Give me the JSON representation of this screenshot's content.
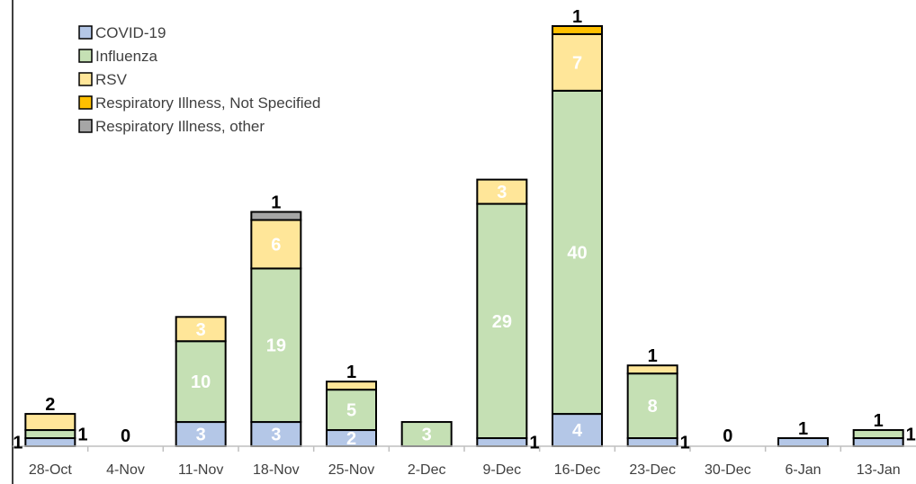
{
  "chart_data": {
    "type": "bar",
    "stacked": true,
    "title": "",
    "xlabel": "",
    "ylabel": "",
    "ylim": [
      0,
      53
    ],
    "grid": false,
    "legend_position": "top-left",
    "categories": [
      "28-Oct",
      "4-Nov",
      "11-Nov",
      "18-Nov",
      "25-Nov",
      "2-Dec",
      "9-Dec",
      "16-Dec",
      "23-Dec",
      "30-Dec",
      "6-Jan",
      "13-Jan"
    ],
    "series": [
      {
        "name": "COVID-19",
        "color": "#b4c7e7",
        "values": [
          1,
          0,
          3,
          3,
          2,
          0,
          1,
          4,
          1,
          0,
          1,
          1
        ]
      },
      {
        "name": "Influenza",
        "color": "#c5e0b4",
        "values": [
          1,
          0,
          10,
          19,
          5,
          3,
          29,
          40,
          8,
          0,
          0,
          1
        ]
      },
      {
        "name": "RSV",
        "color": "#ffe699",
        "values": [
          2,
          0,
          3,
          6,
          1,
          0,
          3,
          7,
          1,
          0,
          0,
          0
        ]
      },
      {
        "name": "Respiratory Illness, Not Specified",
        "color": "#ffc000",
        "values": [
          0,
          0,
          0,
          0,
          0,
          0,
          0,
          1,
          0,
          0,
          0,
          0
        ]
      },
      {
        "name": "Respiratory Illness, other",
        "color": "#a6a6a6",
        "values": [
          0,
          0,
          0,
          1,
          0,
          0,
          0,
          0,
          0,
          0,
          0,
          0
        ]
      }
    ],
    "data_labels": [
      [
        {
          "text": "1",
          "pos": "left",
          "series": 0
        },
        {
          "text": "1",
          "pos": "right",
          "series": 1
        },
        {
          "text": "2",
          "pos": "above",
          "series": 2
        }
      ],
      [
        {
          "text": "0",
          "pos": "zero",
          "series": 0
        }
      ],
      [
        {
          "text": "3",
          "pos": "inside",
          "series": 0
        },
        {
          "text": "10",
          "pos": "inside",
          "series": 1
        },
        {
          "text": "3",
          "pos": "inside",
          "series": 2
        }
      ],
      [
        {
          "text": "3",
          "pos": "inside",
          "series": 0
        },
        {
          "text": "19",
          "pos": "inside",
          "series": 1
        },
        {
          "text": "6",
          "pos": "inside",
          "series": 2
        },
        {
          "text": "1",
          "pos": "above",
          "series": 4
        }
      ],
      [
        {
          "text": "2",
          "pos": "inside",
          "series": 0
        },
        {
          "text": "5",
          "pos": "inside",
          "series": 1
        },
        {
          "text": "1",
          "pos": "above",
          "series": 2
        }
      ],
      [
        {
          "text": "3",
          "pos": "inside",
          "series": 1
        }
      ],
      [
        {
          "text": "1",
          "pos": "right",
          "series": 0
        },
        {
          "text": "29",
          "pos": "inside",
          "series": 1
        },
        {
          "text": "3",
          "pos": "inside",
          "series": 2
        }
      ],
      [
        {
          "text": "4",
          "pos": "inside",
          "series": 0
        },
        {
          "text": "40",
          "pos": "inside",
          "series": 1
        },
        {
          "text": "7",
          "pos": "inside",
          "series": 2
        },
        {
          "text": "1",
          "pos": "above",
          "series": 3
        }
      ],
      [
        {
          "text": "1",
          "pos": "right",
          "series": 0
        },
        {
          "text": "8",
          "pos": "inside",
          "series": 1
        },
        {
          "text": "1",
          "pos": "above",
          "series": 2
        }
      ],
      [
        {
          "text": "0",
          "pos": "zero",
          "series": 0
        }
      ],
      [
        {
          "text": "1",
          "pos": "above",
          "series": 0
        }
      ],
      [
        {
          "text": "1",
          "pos": "above",
          "series": 1
        },
        {
          "text": "1",
          "pos": "right",
          "series": 1
        }
      ]
    ]
  }
}
